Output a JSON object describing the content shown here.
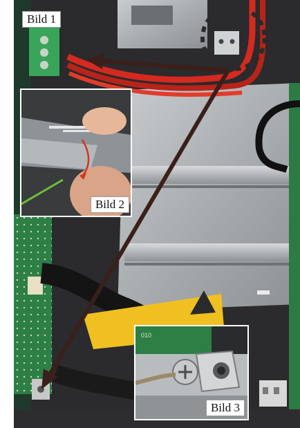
{
  "photo": {
    "subject": "Inside view of a device housing showing red cables, grounding lug, circuit boards and a yellow warning label",
    "labels": {
      "bild1": "Bild 1",
      "bild2": "Bild 2",
      "bild3": "Bild 3"
    },
    "colors": {
      "arrow": "#3a1f1a",
      "cable_red": "#d42a1f",
      "warning_yellow": "#f0c020",
      "pcb_green": "#2f8a4a",
      "metal": "#b9bcbf",
      "inset_border": "#ffffff"
    }
  }
}
